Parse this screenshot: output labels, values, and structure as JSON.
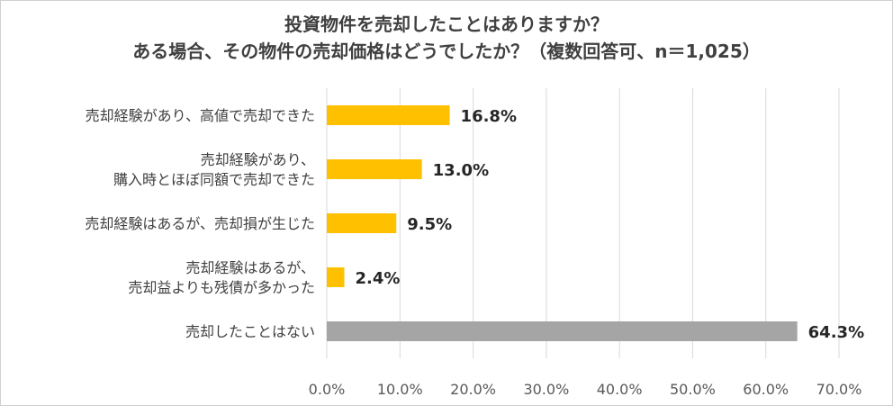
{
  "chart_data": {
    "type": "bar",
    "orientation": "horizontal",
    "title": "投資物件を売却したことはありますか？",
    "subtitle": "ある場合、その物件の売却価格はどうでしたか？（複数回答可、n＝1,025）",
    "categories": [
      [
        "売却経験があり、高値で売却できた"
      ],
      [
        "売却経験があり、",
        "購入時とほぼ同額で売却できた"
      ],
      [
        "売却経験はあるが、売却損が生じた"
      ],
      [
        "売却経験はあるが、",
        "売却益よりも残債が多かった"
      ],
      [
        "売却したことはない"
      ]
    ],
    "values": [
      16.8,
      13.0,
      9.5,
      2.4,
      64.3
    ],
    "data_labels": [
      "16.8%",
      "13.0%",
      "9.5%",
      "2.4%",
      "64.3%"
    ],
    "bar_colors": [
      "#FFC000",
      "#FFC000",
      "#FFC000",
      "#FFC000",
      "#A5A5A5"
    ],
    "xlim": [
      0,
      70
    ],
    "x_ticks": [
      "0.0%",
      "10.0%",
      "20.0%",
      "30.0%",
      "40.0%",
      "50.0%",
      "60.0%",
      "70.0%"
    ],
    "grid": "vertical",
    "legend": "none"
  }
}
